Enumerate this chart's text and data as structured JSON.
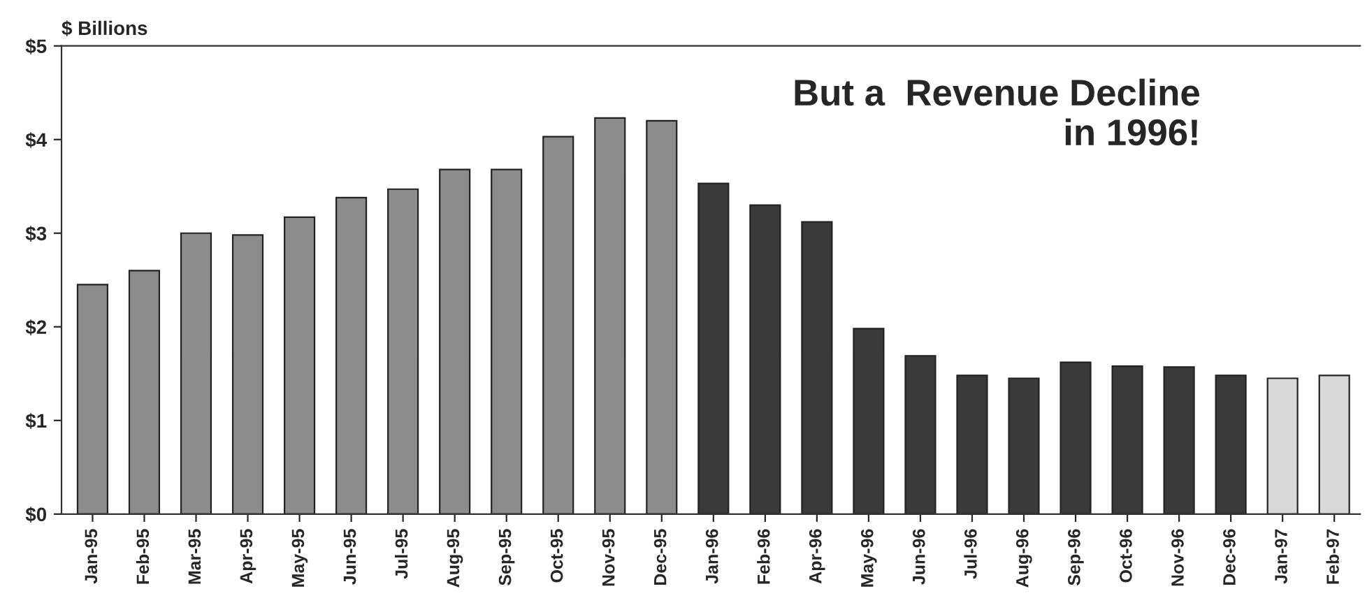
{
  "chart_data": {
    "type": "bar",
    "ylabel": "$ Billions",
    "annotations": [
      "But a  Revenue Decline\nin 1996!"
    ],
    "categories": [
      "Jan-95",
      "Feb-95",
      "Mar-95",
      "Apr-95",
      "May-95",
      "Jun-95",
      "Jul-95",
      "Aug-95",
      "Sep-95",
      "Oct-95",
      "Nov-95",
      "Dec-95",
      "Jan-96",
      "Feb-96",
      "Apr-96",
      "May-96",
      "Jun-96",
      "Jul-96",
      "Aug-96",
      "Sep-96",
      "Oct-96",
      "Nov-96",
      "Dec-96",
      "Jan-97",
      "Feb-97"
    ],
    "values": [
      2.45,
      2.6,
      3.0,
      2.98,
      3.17,
      3.38,
      3.47,
      3.68,
      3.68,
      4.03,
      4.23,
      4.2,
      3.53,
      3.3,
      3.12,
      1.98,
      1.69,
      1.48,
      1.45,
      1.62,
      1.58,
      1.57,
      1.48,
      1.45,
      1.48
    ],
    "colors": [
      "#8c8c8c",
      "#8c8c8c",
      "#8c8c8c",
      "#8c8c8c",
      "#8c8c8c",
      "#8c8c8c",
      "#8c8c8c",
      "#8c8c8c",
      "#8c8c8c",
      "#8c8c8c",
      "#8c8c8c",
      "#8c8c8c",
      "#3a3a3a",
      "#3a3a3a",
      "#3a3a3a",
      "#3a3a3a",
      "#3a3a3a",
      "#3a3a3a",
      "#3a3a3a",
      "#3a3a3a",
      "#3a3a3a",
      "#3a3a3a",
      "#3a3a3a",
      "#d9d9d9",
      "#d9d9d9"
    ],
    "ylim": [
      0,
      5
    ],
    "yticks": [
      {
        "value": 0,
        "label": "$0"
      },
      {
        "value": 1,
        "label": "$1"
      },
      {
        "value": 2,
        "label": "$2"
      },
      {
        "value": 3,
        "label": "$3"
      },
      {
        "value": 4,
        "label": "$4"
      },
      {
        "value": 5,
        "label": "$5"
      }
    ],
    "grid": false,
    "legend": false
  }
}
